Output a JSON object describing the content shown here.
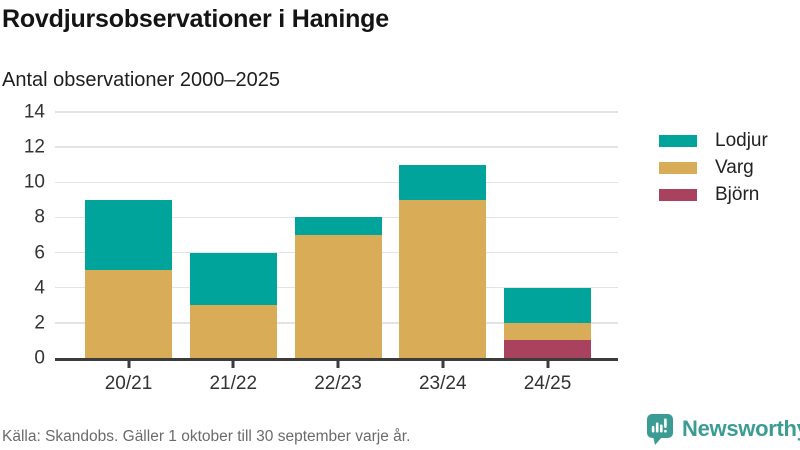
{
  "header": {
    "title": "Rovdjursobservationer i Haninge",
    "subtitle": "Antal observationer 2000–2025"
  },
  "chart_data": {
    "type": "bar",
    "stacked": true,
    "title": "Rovdjursobservationer i Haninge",
    "subtitle": "Antal observationer 2000–2025",
    "categories": [
      "20/21",
      "21/22",
      "22/23",
      "23/24",
      "24/25"
    ],
    "series": [
      {
        "name": "Björn",
        "color": "#a8425f",
        "values": [
          0,
          0,
          0,
          0,
          1
        ]
      },
      {
        "name": "Varg",
        "color": "#d9ad57",
        "values": [
          5,
          3,
          7,
          9,
          1
        ]
      },
      {
        "name": "Lodjur",
        "color": "#00a49a",
        "values": [
          4,
          3,
          1,
          2,
          2
        ]
      }
    ],
    "totals": [
      9,
      6,
      8,
      11,
      4
    ],
    "xlabel": "",
    "ylabel": "",
    "ylim": [
      0,
      14
    ],
    "y_ticks": [
      0,
      2,
      4,
      6,
      8,
      10,
      12,
      14
    ],
    "grid": true,
    "legend": {
      "position": "right",
      "order": [
        "Lodjur",
        "Varg",
        "Björn"
      ]
    }
  },
  "footer": {
    "source": "Källa: Skandobs. Gäller 1 oktober till 30 september varje år."
  },
  "branding": {
    "name": "Newsworthy",
    "color": "#3b9c94",
    "icon": "newsworthy-chart-bubble-icon"
  },
  "colors": {
    "axis": "#3b3b3b",
    "gridline": "#e3e3e3",
    "tick_label": "#333333"
  }
}
